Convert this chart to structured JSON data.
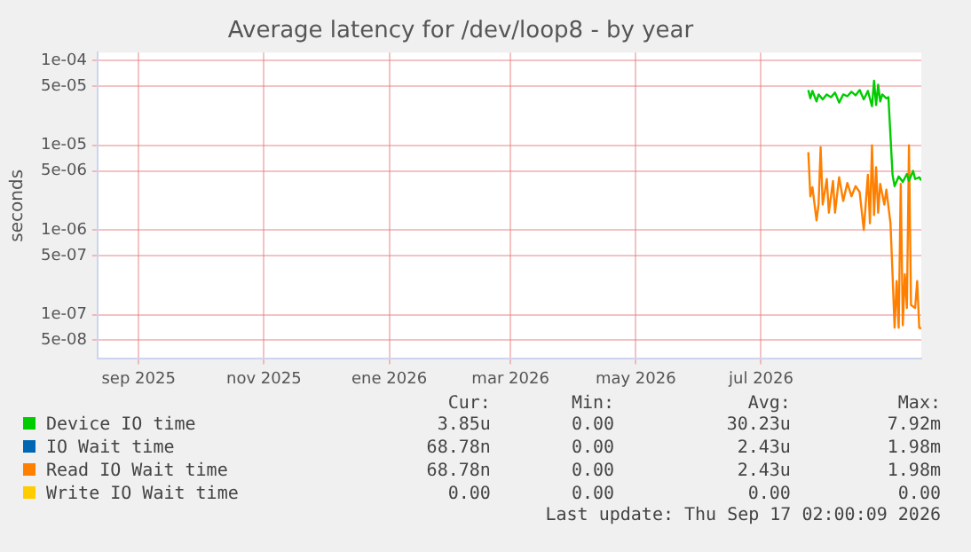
{
  "chart_data": {
    "type": "line",
    "title": "Average latency for /dev/loop8 - by year",
    "ylabel": "seconds",
    "log": "y",
    "grid": true,
    "legend": "bottom",
    "marker": "none",
    "line_style": "solid",
    "xlim": [
      "2025-08-12",
      "2026-09-17"
    ],
    "xticks": [
      {
        "value": "2025-09-01",
        "label": "sep 2025"
      },
      {
        "value": "2025-11-01",
        "label": "nov 2025"
      },
      {
        "value": "2026-01-01",
        "label": "ene 2026"
      },
      {
        "value": "2026-03-01",
        "label": "mar 2026"
      },
      {
        "value": "2026-05-01",
        "label": "may 2026"
      },
      {
        "value": "2026-07-01",
        "label": "jul 2026"
      }
    ],
    "ylim": [
      3.2e-08,
      0.000125
    ],
    "yticks": [
      {
        "value": 0.0001,
        "label": "1e-04"
      },
      {
        "value": 5e-05,
        "label": "5e-05"
      },
      {
        "value": 1e-05,
        "label": "1e-05"
      },
      {
        "value": 5e-06,
        "label": "5e-06"
      },
      {
        "value": 1e-06,
        "label": "1e-06"
      },
      {
        "value": 5e-07,
        "label": "5e-07"
      },
      {
        "value": 1e-07,
        "label": "1e-07"
      },
      {
        "value": 5e-08,
        "label": "5e-08"
      }
    ],
    "series": [
      {
        "name": "Device IO time",
        "color": "#00cc00",
        "x": [
          "2026-07-24",
          "2026-07-25",
          "2026-07-26",
          "2026-07-28",
          "2026-07-29",
          "2026-07-31",
          "2026-08-02",
          "2026-08-04",
          "2026-08-06",
          "2026-08-08",
          "2026-08-10",
          "2026-08-12",
          "2026-08-14",
          "2026-08-16",
          "2026-08-18",
          "2026-08-20",
          "2026-08-22",
          "2026-08-24",
          "2026-08-25",
          "2026-08-26",
          "2026-08-27",
          "2026-08-28",
          "2026-08-29",
          "2026-08-31",
          "2026-09-01",
          "2026-09-03",
          "2026-09-04",
          "2026-09-06",
          "2026-09-08",
          "2026-09-10",
          "2026-09-11",
          "2026-09-13",
          "2026-09-14",
          "2026-09-16",
          "2026-09-17"
        ],
        "values": [
          4.5e-05,
          3.6e-05,
          4.4e-05,
          3.3e-05,
          4e-05,
          3.5e-05,
          4e-05,
          3.7e-05,
          4.2e-05,
          3.2e-05,
          4e-05,
          3.8e-05,
          4.3e-05,
          3.9e-05,
          4.5e-05,
          3.5e-05,
          4.4e-05,
          2.9e-05,
          5.8e-05,
          3e-05,
          5.2e-05,
          3.3e-05,
          4e-05,
          3.6e-05,
          3.7e-05,
          4.5e-06,
          3.3e-06,
          4.3e-06,
          3.7e-06,
          4.6e-06,
          3.8e-06,
          5e-06,
          4e-06,
          4.2e-06,
          3.85e-06
        ]
      },
      {
        "name": "IO Wait time",
        "color": "#0066b3",
        "values": [
          null
        ]
      },
      {
        "name": "Read IO Wait time",
        "color": "#ff8000",
        "x": [
          "2026-07-24",
          "2026-07-25",
          "2026-07-26",
          "2026-07-28",
          "2026-07-29",
          "2026-07-30",
          "2026-07-31",
          "2026-08-02",
          "2026-08-03",
          "2026-08-05",
          "2026-08-06",
          "2026-08-08",
          "2026-08-10",
          "2026-08-12",
          "2026-08-14",
          "2026-08-16",
          "2026-08-18",
          "2026-08-20",
          "2026-08-22",
          "2026-08-23",
          "2026-08-24",
          "2026-08-25",
          "2026-08-26",
          "2026-08-27",
          "2026-08-28",
          "2026-08-30",
          "2026-08-31",
          "2026-09-02",
          "2026-09-03",
          "2026-09-04",
          "2026-09-05",
          "2026-09-06",
          "2026-09-07",
          "2026-09-08",
          "2026-09-09",
          "2026-09-10",
          "2026-09-11",
          "2026-09-12",
          "2026-09-14",
          "2026-09-15",
          "2026-09-16",
          "2026-09-17"
        ],
        "values": [
          8.3e-06,
          2.5e-06,
          3.2e-06,
          1.3e-06,
          2e-06,
          9.5e-06,
          2e-06,
          4e-06,
          1.6e-06,
          3.8e-06,
          1.6e-06,
          4.2e-06,
          2.2e-06,
          3.6e-06,
          2.5e-06,
          3.3e-06,
          2.8e-06,
          1e-06,
          4.5e-06,
          1.2e-06,
          1e-05,
          1.5e-06,
          5.5e-06,
          1.6e-06,
          3.5e-06,
          2e-06,
          3e-06,
          1.2e-06,
          3e-07,
          7e-08,
          2.5e-07,
          7e-08,
          3.5e-06,
          7.5e-08,
          3e-07,
          1.2e-07,
          1e-05,
          1.3e-07,
          1.2e-07,
          2.5e-07,
          7e-08,
          6.878e-08
        ]
      },
      {
        "name": "Write IO Wait time",
        "color": "#ffcc00",
        "values": [
          null
        ]
      }
    ],
    "annotations": [
      "Cur:",
      "Min:",
      "Avg:",
      "Max:",
      "3.85u",
      "0.00",
      "30.23u",
      "7.92m",
      "68.78n",
      "0.00",
      "2.43u",
      "1.98m",
      "68.78n",
      "0.00",
      "2.43u",
      "1.98m",
      "0.00",
      "0.00",
      "0.00",
      "0.00",
      "Last update: Thu Sep 17 02:00:09 2026"
    ]
  }
}
